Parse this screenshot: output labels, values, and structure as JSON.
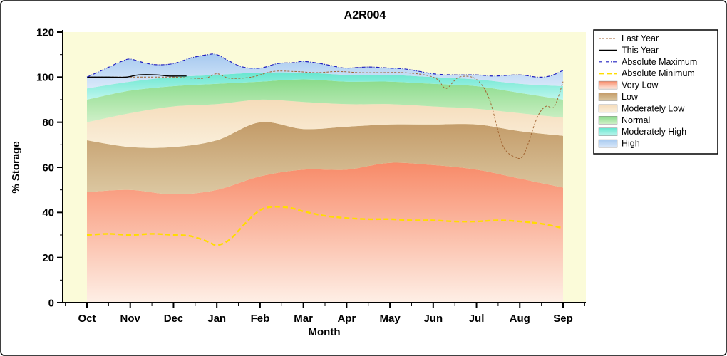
{
  "chart_data": {
    "type": "area",
    "title": "A2R004",
    "xlabel": "Month",
    "ylabel": "% Storage",
    "ylim": [
      0,
      120
    ],
    "yticks": [
      0,
      20,
      40,
      60,
      80,
      100,
      120
    ],
    "y_minor_step": 10,
    "categories": [
      "Oct",
      "Nov",
      "Dec",
      "Jan",
      "Feb",
      "Mar",
      "Apr",
      "May",
      "Jun",
      "Jul",
      "Aug",
      "Sep"
    ],
    "plot_bg": "#FBFBD9",
    "grid": false,
    "legend_position": "right-outside",
    "bands": [
      {
        "id": "very_low",
        "name": "Very Low",
        "color": "#F88A68",
        "color_light": "#FEEFE6",
        "top": [
          [
            0,
            49
          ],
          [
            1,
            50
          ],
          [
            2,
            48
          ],
          [
            3,
            50
          ],
          [
            4,
            56
          ],
          [
            5,
            59
          ],
          [
            6,
            59
          ],
          [
            7,
            62
          ],
          [
            8,
            61
          ],
          [
            9,
            59
          ],
          [
            10,
            55
          ],
          [
            11,
            51
          ]
        ]
      },
      {
        "id": "low",
        "name": "Low",
        "color": "#C39B68",
        "color_light": "#DCC8A2",
        "top": [
          [
            0,
            72
          ],
          [
            1,
            69
          ],
          [
            2,
            69
          ],
          [
            3,
            72
          ],
          [
            4,
            80
          ],
          [
            5,
            77
          ],
          [
            6,
            78
          ],
          [
            7,
            79
          ],
          [
            8,
            79
          ],
          [
            9,
            79
          ],
          [
            10,
            76
          ],
          [
            11,
            74
          ]
        ]
      },
      {
        "id": "mod_low",
        "name": "Moderately Low",
        "color": "#F5DCBA",
        "color_light": "#FAEFDB",
        "top": [
          [
            0,
            80
          ],
          [
            1,
            84
          ],
          [
            2,
            87
          ],
          [
            3,
            88
          ],
          [
            4,
            90
          ],
          [
            5,
            89
          ],
          [
            6,
            88
          ],
          [
            7,
            88
          ],
          [
            8,
            87
          ],
          [
            9,
            86
          ],
          [
            10,
            84
          ],
          [
            11,
            82
          ]
        ]
      },
      {
        "id": "normal",
        "name": "Normal",
        "color": "#8ADB8A",
        "color_light": "#CFF0C8",
        "top": [
          [
            0,
            90
          ],
          [
            1,
            94
          ],
          [
            2,
            96
          ],
          [
            3,
            97
          ],
          [
            4,
            98
          ],
          [
            5,
            99
          ],
          [
            6,
            98
          ],
          [
            7,
            98
          ],
          [
            8,
            97
          ],
          [
            9,
            96
          ],
          [
            10,
            93
          ],
          [
            11,
            90
          ]
        ]
      },
      {
        "id": "mod_high",
        "name": "Moderately High",
        "color": "#66E6CF",
        "color_light": "#BFF6EE",
        "top": [
          [
            0,
            95
          ],
          [
            1,
            98
          ],
          [
            2,
            100
          ],
          [
            3,
            101
          ],
          [
            4,
            102
          ],
          [
            5,
            102
          ],
          [
            6,
            101
          ],
          [
            7,
            101
          ],
          [
            8,
            100
          ],
          [
            9,
            99
          ],
          [
            10,
            97
          ],
          [
            11,
            96
          ]
        ]
      },
      {
        "id": "high",
        "name": "High",
        "color": "#A6C9EF",
        "color_light": "#DAE9FA",
        "top": [
          [
            0,
            100
          ],
          [
            0.4,
            103.5
          ],
          [
            0.8,
            107
          ],
          [
            1,
            108
          ],
          [
            1.3,
            106.5
          ],
          [
            1.6,
            105.5
          ],
          [
            2,
            106
          ],
          [
            2.4,
            108.5
          ],
          [
            2.8,
            110
          ],
          [
            3,
            110
          ],
          [
            3.3,
            107
          ],
          [
            3.6,
            104.5
          ],
          [
            4,
            104
          ],
          [
            4.4,
            106
          ],
          [
            4.8,
            106.5
          ],
          [
            5,
            107
          ],
          [
            5.4,
            106
          ],
          [
            5.8,
            104.5
          ],
          [
            6,
            104
          ],
          [
            6.5,
            104.5
          ],
          [
            7,
            104
          ],
          [
            7.4,
            103.5
          ],
          [
            8,
            101.5
          ],
          [
            8.5,
            101
          ],
          [
            9,
            101
          ],
          [
            9.4,
            100.5
          ],
          [
            10,
            101
          ],
          [
            10.4,
            100
          ],
          [
            10.7,
            100.5
          ],
          [
            11,
            103
          ]
        ]
      }
    ],
    "lines": [
      {
        "id": "abs_min",
        "name": "Absolute Minimum",
        "color": "#FFDC00",
        "dash": "7,4",
        "width": 2.4,
        "points": [
          [
            0,
            30
          ],
          [
            0.5,
            30.5
          ],
          [
            1,
            30
          ],
          [
            1.5,
            30.5
          ],
          [
            2,
            30
          ],
          [
            2.4,
            29.5
          ],
          [
            2.8,
            27
          ],
          [
            3,
            25.5
          ],
          [
            3.3,
            28
          ],
          [
            3.7,
            36
          ],
          [
            4,
            41
          ],
          [
            4.3,
            42.5
          ],
          [
            4.7,
            42
          ],
          [
            5,
            40.5
          ],
          [
            5.5,
            38.5
          ],
          [
            6,
            37.5
          ],
          [
            6.5,
            37
          ],
          [
            7,
            37
          ],
          [
            7.5,
            36.5
          ],
          [
            8,
            36.5
          ],
          [
            8.5,
            36
          ],
          [
            9,
            36
          ],
          [
            9.5,
            36.5
          ],
          [
            10,
            36
          ],
          [
            10.5,
            35
          ],
          [
            11,
            33
          ]
        ]
      },
      {
        "id": "last_year",
        "name": "Last Year",
        "color": "#A36633",
        "dash": "3,2",
        "width": 1,
        "points": [
          [
            0,
            100
          ],
          [
            0.5,
            100
          ],
          [
            1,
            100
          ],
          [
            1.5,
            100
          ],
          [
            2,
            100
          ],
          [
            2.7,
            99.5
          ],
          [
            3,
            101.5
          ],
          [
            3.3,
            99.5
          ],
          [
            3.8,
            100
          ],
          [
            4.3,
            102.5
          ],
          [
            4.8,
            102.5
          ],
          [
            5.3,
            102
          ],
          [
            5.8,
            102.5
          ],
          [
            6.3,
            102
          ],
          [
            6.8,
            102
          ],
          [
            7.3,
            102
          ],
          [
            7.8,
            101
          ],
          [
            8.1,
            99
          ],
          [
            8.3,
            95
          ],
          [
            8.6,
            100
          ],
          [
            9,
            99
          ],
          [
            9.3,
            90
          ],
          [
            9.6,
            70
          ],
          [
            9.9,
            64.5
          ],
          [
            10.1,
            66
          ],
          [
            10.4,
            82
          ],
          [
            10.6,
            87
          ],
          [
            10.8,
            87
          ],
          [
            11,
            98
          ]
        ]
      },
      {
        "id": "this_year",
        "name": "This Year",
        "color": "#000000",
        "dash": "",
        "width": 1.4,
        "points": [
          [
            0,
            100
          ],
          [
            0.5,
            100
          ],
          [
            0.9,
            100
          ],
          [
            1.2,
            101
          ],
          [
            1.6,
            101
          ],
          [
            1.9,
            100.5
          ],
          [
            2.3,
            100.5
          ]
        ]
      },
      {
        "id": "abs_max",
        "name": "Absolute Maximum",
        "color": "#2020C0",
        "dash": "5,2,1,2",
        "width": 1.2,
        "points": [
          [
            0,
            100
          ],
          [
            0.4,
            103.5
          ],
          [
            0.8,
            107
          ],
          [
            1,
            108
          ],
          [
            1.3,
            106.5
          ],
          [
            1.6,
            105.5
          ],
          [
            2,
            106
          ],
          [
            2.4,
            108.5
          ],
          [
            2.8,
            110
          ],
          [
            3,
            110
          ],
          [
            3.3,
            107
          ],
          [
            3.6,
            104.5
          ],
          [
            4,
            104
          ],
          [
            4.4,
            106
          ],
          [
            4.8,
            106.5
          ],
          [
            5,
            107
          ],
          [
            5.4,
            106
          ],
          [
            5.8,
            104.5
          ],
          [
            6,
            104
          ],
          [
            6.5,
            104.5
          ],
          [
            7,
            104
          ],
          [
            7.4,
            103.5
          ],
          [
            8,
            101.5
          ],
          [
            8.5,
            101
          ],
          [
            9,
            101
          ],
          [
            9.4,
            100.5
          ],
          [
            10,
            101
          ],
          [
            10.4,
            100
          ],
          [
            10.7,
            100.5
          ],
          [
            11,
            103
          ]
        ]
      }
    ],
    "legend": [
      {
        "label": "Last Year",
        "swatch": "line",
        "ref": "last_year"
      },
      {
        "label": "This Year",
        "swatch": "line",
        "ref": "this_year"
      },
      {
        "label": "Absolute Maximum",
        "swatch": "line",
        "ref": "abs_max"
      },
      {
        "label": "Absolute Minimum",
        "swatch": "line",
        "ref": "abs_min"
      },
      {
        "label": "Very Low",
        "swatch": "band",
        "ref": "very_low"
      },
      {
        "label": "Low",
        "swatch": "band",
        "ref": "low"
      },
      {
        "label": "Moderately Low",
        "swatch": "band",
        "ref": "mod_low"
      },
      {
        "label": "Normal",
        "swatch": "band",
        "ref": "normal"
      },
      {
        "label": "Moderately High",
        "swatch": "band",
        "ref": "mod_high"
      },
      {
        "label": "High",
        "swatch": "band",
        "ref": "high"
      }
    ]
  }
}
